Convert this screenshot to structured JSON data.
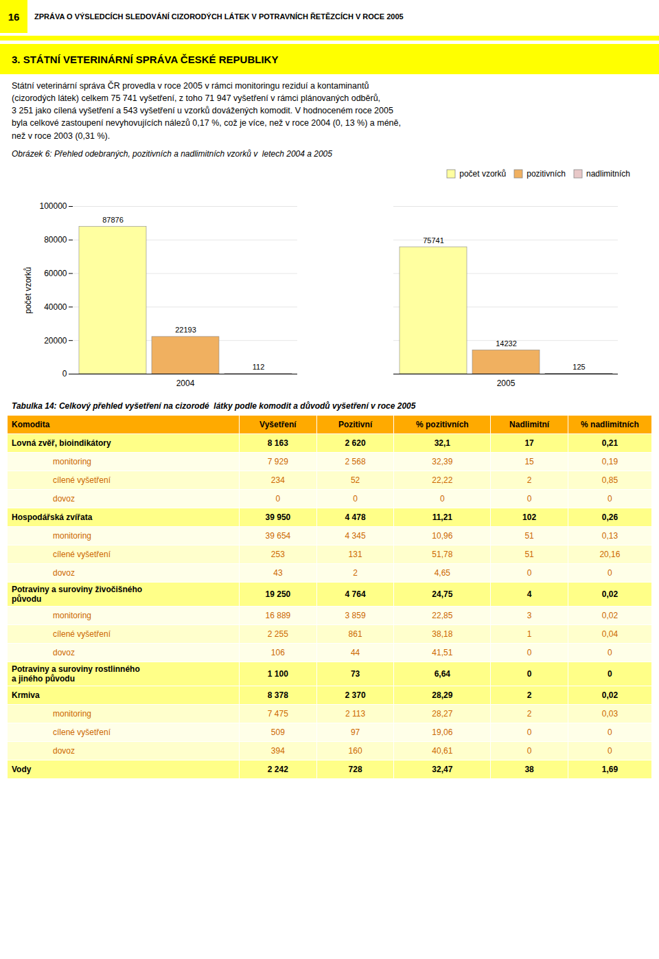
{
  "page_number": "16",
  "header_text": "ZPRÁVA O VÝSLEDCÍCH SLEDOVÁNÍ CIZORODÝCH LÁTEK V POTRAVNÍCH ŘETĚZCÍCH V ROCE 2005",
  "header_color": "#ffff00",
  "section_title": "3. STÁTNÍ VETERINÁRNÍ SPRÁVA ČESKÉ REPUBLIKY",
  "body_text": "Státní veterinární správa ČR provedla v roce 2005 v rámci monitoringu reziduí a kontaminantů\n(cizorodých látek) celkem 75 741 vyšetření, z toho 71 947 vyšetření v rámci plánovaných odběrů,\n3 251 jako cílená vyšetření a 543 vyšetření u vzorků dovážených komodit. V hodnoceném roce 2005\nbyla celkové zastoupení nevyhovujících nálezů 0,17 %, což je více, než v roce 2004 (0, 13 %) a méně,\nnež v roce 2003 (0,31 %).",
  "chart_data": {
    "type": "bar",
    "title": "Obrázek 6: Přehled odebraných, pozitivních a nadlimitních vzorků v  letech 2004 a 2005",
    "categories": [
      "2004",
      "2005"
    ],
    "series": [
      {
        "name": "počet vzorků",
        "color": "#ffffa0",
        "values": [
          87876,
          75741
        ]
      },
      {
        "name": "pozitivních",
        "color": "#f0b060",
        "values": [
          22193,
          14232
        ]
      },
      {
        "name": "nadlimitních",
        "color": "#e8c8c8",
        "values": [
          112,
          125
        ]
      }
    ],
    "ylabel": "počet vzorků",
    "ylim": [
      0,
      100000
    ],
    "yticks": [
      0,
      20000,
      40000,
      60000,
      80000,
      100000
    ],
    "grid": true,
    "legend": "upper right",
    "data_labels": true
  },
  "table": {
    "title": "Tabulka 14: Celkový přehled vyšetření na cizorodé  látky podle komodit a důvodů vyšetření v roce 2005",
    "headers": [
      "Komodita",
      "Vyšetření",
      "Pozitivní",
      "% pozitivních",
      "Nadlimitní",
      "% nadlimitních"
    ],
    "header_color": "#ffaa00",
    "bold_color": "#ffff88",
    "row_colors": [
      "#ffffcc",
      "#ffffe8"
    ],
    "sub_text_color": "#cc6600",
    "rows": [
      {
        "label": "Lovná zvěř, bioindikátory",
        "indent": 0,
        "bold": true,
        "values": [
          "8 163",
          "2 620",
          "32,1",
          "17",
          "0,21"
        ]
      },
      {
        "label": "monitoring",
        "indent": 1,
        "bold": false,
        "values": [
          "7 929",
          "2 568",
          "32,39",
          "15",
          "0,19"
        ]
      },
      {
        "label": "cílené vyšetření",
        "indent": 1,
        "bold": false,
        "values": [
          "234",
          "52",
          "22,22",
          "2",
          "0,85"
        ]
      },
      {
        "label": "dovoz",
        "indent": 1,
        "bold": false,
        "values": [
          "0",
          "0",
          "0",
          "0",
          "0"
        ]
      },
      {
        "label": "Hospodářská zvířata",
        "indent": 0,
        "bold": true,
        "values": [
          "39 950",
          "4 478",
          "11,21",
          "102",
          "0,26"
        ]
      },
      {
        "label": "monitoring",
        "indent": 1,
        "bold": false,
        "values": [
          "39 654",
          "4 345",
          "10,96",
          "51",
          "0,13"
        ]
      },
      {
        "label": "cílené vyšetření",
        "indent": 1,
        "bold": false,
        "values": [
          "253",
          "131",
          "51,78",
          "51",
          "20,16"
        ]
      },
      {
        "label": "dovoz",
        "indent": 1,
        "bold": false,
        "values": [
          "43",
          "2",
          "4,65",
          "0",
          "0"
        ]
      },
      {
        "label": "Potraviny a suroviny živočišného\npůvodu",
        "indent": 0,
        "bold": true,
        "values": [
          "19 250",
          "4 764",
          "24,75",
          "4",
          "0,02"
        ]
      },
      {
        "label": "monitoring",
        "indent": 1,
        "bold": false,
        "values": [
          "16 889",
          "3 859",
          "22,85",
          "3",
          "0,02"
        ]
      },
      {
        "label": "cílené vyšetření",
        "indent": 1,
        "bold": false,
        "values": [
          "2 255",
          "861",
          "38,18",
          "1",
          "0,04"
        ]
      },
      {
        "label": "dovoz",
        "indent": 1,
        "bold": false,
        "values": [
          "106",
          "44",
          "41,51",
          "0",
          "0"
        ]
      },
      {
        "label": "Potraviny a suroviny rostlinného\na jiného původu",
        "indent": 0,
        "bold": true,
        "values": [
          "1 100",
          "73",
          "6,64",
          "0",
          "0"
        ]
      },
      {
        "label": "Krmiva",
        "indent": 0,
        "bold": true,
        "values": [
          "8 378",
          "2 370",
          "28,29",
          "2",
          "0,02"
        ]
      },
      {
        "label": "monitoring",
        "indent": 1,
        "bold": false,
        "values": [
          "7 475",
          "2 113",
          "28,27",
          "2",
          "0,03"
        ]
      },
      {
        "label": "cílené vyšetření",
        "indent": 1,
        "bold": false,
        "values": [
          "509",
          "97",
          "19,06",
          "0",
          "0"
        ]
      },
      {
        "label": "dovoz",
        "indent": 1,
        "bold": false,
        "values": [
          "394",
          "160",
          "40,61",
          "0",
          "0"
        ]
      },
      {
        "label": "Vody",
        "indent": 0,
        "bold": true,
        "values": [
          "2 242",
          "728",
          "32,47",
          "38",
          "1,69"
        ]
      }
    ]
  }
}
